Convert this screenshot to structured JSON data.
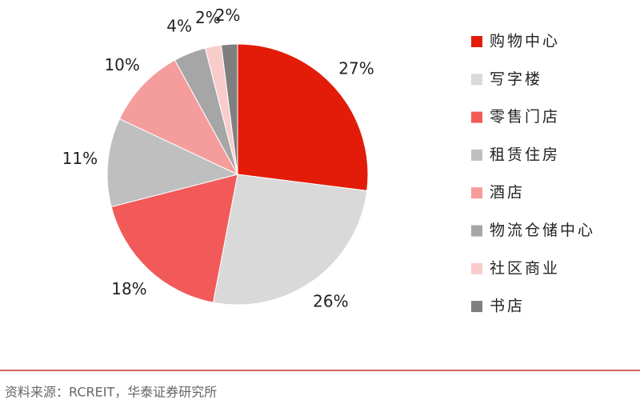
{
  "chart_data": {
    "type": "pie",
    "categories": [
      "购物中心",
      "写字楼",
      "零售门店",
      "租赁住房",
      "酒店",
      "物流仓储中心",
      "社区商业",
      "书店"
    ],
    "values": [
      27,
      26,
      18,
      11,
      10,
      4,
      2,
      2
    ],
    "value_labels": [
      "27%",
      "26%",
      "18%",
      "11%",
      "10%",
      "4%",
      "2%",
      "2%"
    ],
    "colors": [
      "#e31c0a",
      "#d9d9d9",
      "#f25a5a",
      "#bfbfbf",
      "#f59c9c",
      "#a6a6a6",
      "#f9cccc",
      "#7f7f7f"
    ],
    "legend": "right"
  },
  "source": "资料来源：RCREIT，华泰证券研究所"
}
